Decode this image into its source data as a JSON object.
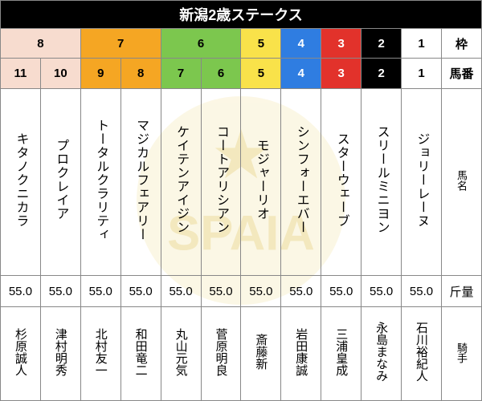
{
  "title": "新潟2歳ステークス",
  "headers": {
    "waku": "枠",
    "ban": "馬番",
    "name": "馬名",
    "wt": "斤量",
    "jockey": "騎手"
  },
  "waku_groups": [
    {
      "span": 2,
      "label": "8",
      "bg": "#f7dccf",
      "fg": "#000"
    },
    {
      "span": 2,
      "label": "7",
      "bg": "#f5a623",
      "fg": "#000"
    },
    {
      "span": 2,
      "label": "6",
      "bg": "#7cc74e",
      "fg": "#000"
    },
    {
      "span": 1,
      "label": "5",
      "bg": "#f9e24a",
      "fg": "#000"
    },
    {
      "span": 1,
      "label": "4",
      "bg": "#2f7de1",
      "fg": "#fff"
    },
    {
      "span": 1,
      "label": "3",
      "bg": "#e2322b",
      "fg": "#fff"
    },
    {
      "span": 1,
      "label": "2",
      "bg": "#000",
      "fg": "#fff"
    },
    {
      "span": 1,
      "label": "1",
      "bg": "#fff",
      "fg": "#000"
    }
  ],
  "entries": [
    {
      "ban": "11",
      "ban_bg": "#f7dccf",
      "ban_fg": "#000",
      "name": "キタノクニカラ",
      "wt": "55.0",
      "jockey": "杉原誠人"
    },
    {
      "ban": "10",
      "ban_bg": "#f7dccf",
      "ban_fg": "#000",
      "name": "プロクレイア",
      "wt": "55.0",
      "jockey": "津村明秀"
    },
    {
      "ban": "9",
      "ban_bg": "#f5a623",
      "ban_fg": "#000",
      "name": "トータルクラリティ",
      "wt": "55.0",
      "jockey": "北村友一"
    },
    {
      "ban": "8",
      "ban_bg": "#f5a623",
      "ban_fg": "#000",
      "name": "マジカルフェアリー",
      "wt": "55.0",
      "jockey": "和田竜二"
    },
    {
      "ban": "7",
      "ban_bg": "#7cc74e",
      "ban_fg": "#000",
      "name": "ケイテンアイジン",
      "wt": "55.0",
      "jockey": "丸山元気"
    },
    {
      "ban": "6",
      "ban_bg": "#7cc74e",
      "ban_fg": "#000",
      "name": "コートアリシアン",
      "wt": "55.0",
      "jockey": "菅原明良"
    },
    {
      "ban": "5",
      "ban_bg": "#f9e24a",
      "ban_fg": "#000",
      "name": "モジャーリオ",
      "wt": "55.0",
      "jockey": "斎藤新"
    },
    {
      "ban": "4",
      "ban_bg": "#2f7de1",
      "ban_fg": "#fff",
      "name": "シンフォーエバー",
      "wt": "55.0",
      "jockey": "岩田康誠"
    },
    {
      "ban": "3",
      "ban_bg": "#e2322b",
      "ban_fg": "#fff",
      "name": "スターウェーブ",
      "wt": "55.0",
      "jockey": "三浦皇成"
    },
    {
      "ban": "2",
      "ban_bg": "#000",
      "ban_fg": "#fff",
      "name": "スリールミニヨン",
      "wt": "55.0",
      "jockey": "永島まなみ"
    },
    {
      "ban": "1",
      "ban_bg": "#fff",
      "ban_fg": "#000",
      "name": "ジョリーレーヌ",
      "wt": "55.0",
      "jockey": "石川裕紀人"
    }
  ]
}
